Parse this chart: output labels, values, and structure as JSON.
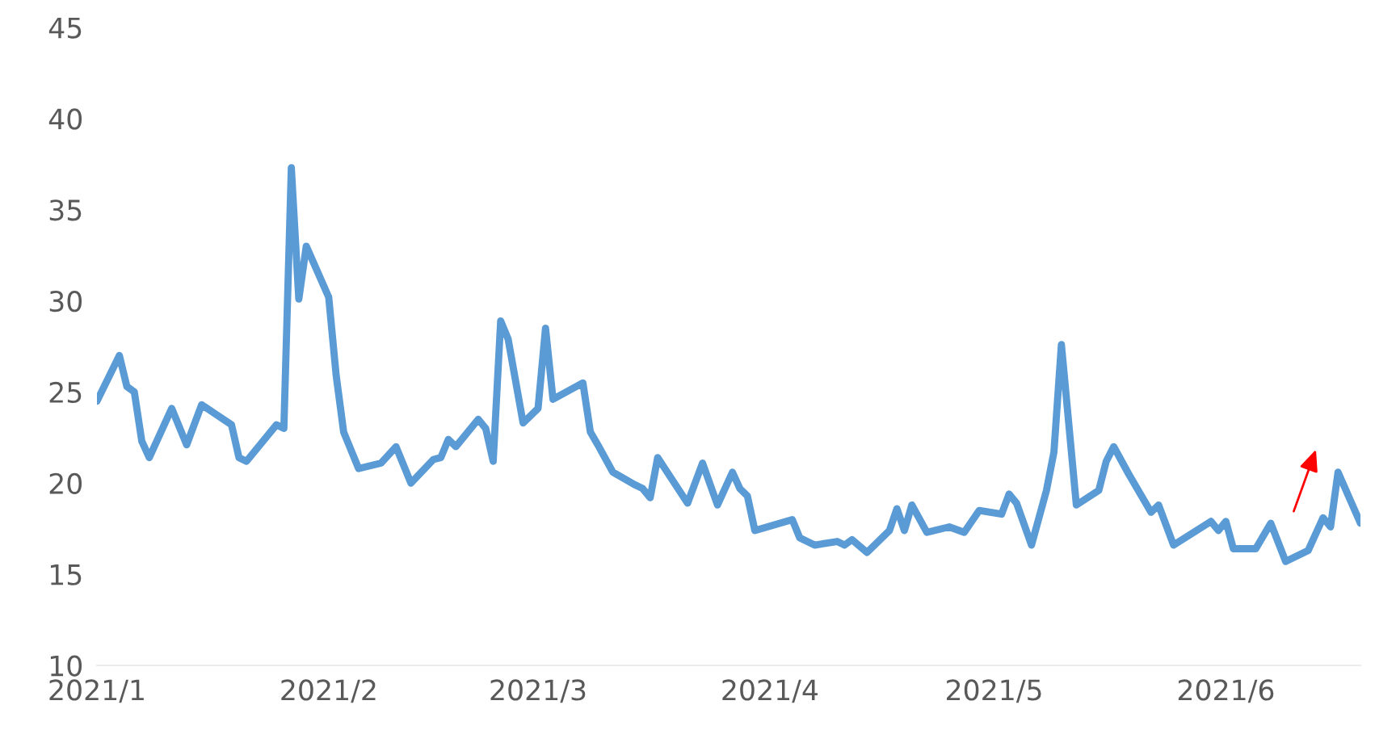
{
  "chart_data": {
    "type": "line",
    "x": [
      "2021-01-01",
      "2021-01-04",
      "2021-01-05",
      "2021-01-06",
      "2021-01-07",
      "2021-01-08",
      "2021-01-11",
      "2021-01-13",
      "2021-01-15",
      "2021-01-19",
      "2021-01-20",
      "2021-01-21",
      "2021-01-25",
      "2021-01-26",
      "2021-01-27",
      "2021-01-28",
      "2021-01-29",
      "2021-02-01",
      "2021-02-02",
      "2021-02-03",
      "2021-02-05",
      "2021-02-08",
      "2021-02-10",
      "2021-02-12",
      "2021-02-15",
      "2021-02-16",
      "2021-02-17",
      "2021-02-18",
      "2021-02-21",
      "2021-02-22",
      "2021-02-23",
      "2021-02-24",
      "2021-02-25",
      "2021-02-27",
      "2021-03-01",
      "2021-03-02",
      "2021-03-03",
      "2021-03-07",
      "2021-03-08",
      "2021-03-09",
      "2021-03-11",
      "2021-03-14",
      "2021-03-15",
      "2021-03-16",
      "2021-03-17",
      "2021-03-21",
      "2021-03-23",
      "2021-03-25",
      "2021-03-27",
      "2021-03-28",
      "2021-03-29",
      "2021-03-30",
      "2021-04-04",
      "2021-04-05",
      "2021-04-07",
      "2021-04-10",
      "2021-04-11",
      "2021-04-12",
      "2021-04-14",
      "2021-04-17",
      "2021-04-18",
      "2021-04-19",
      "2021-04-20",
      "2021-04-22",
      "2021-04-25",
      "2021-04-27",
      "2021-04-29",
      "2021-05-02",
      "2021-05-03",
      "2021-05-04",
      "2021-05-06",
      "2021-05-08",
      "2021-05-09",
      "2021-05-10",
      "2021-05-12",
      "2021-05-15",
      "2021-05-16",
      "2021-05-17",
      "2021-05-19",
      "2021-05-22",
      "2021-05-23",
      "2021-05-25",
      "2021-05-30",
      "2021-05-31",
      "2021-06-01",
      "2021-06-02",
      "2021-06-05",
      "2021-06-07",
      "2021-06-09",
      "2021-06-12",
      "2021-06-14",
      "2021-06-15",
      "2021-06-16",
      "2021-06-19"
    ],
    "series": [
      {
        "color": "#5b9bd5",
        "values": [
          24.5,
          27.0,
          25.3,
          25.0,
          22.3,
          21.4,
          24.1,
          22.1,
          24.3,
          23.2,
          21.4,
          21.2,
          23.2,
          23.0,
          37.3,
          30.1,
          33.0,
          30.2,
          25.9,
          22.8,
          20.8,
          21.1,
          22.0,
          20.0,
          21.3,
          21.4,
          22.4,
          22.0,
          23.5,
          23.0,
          21.2,
          28.9,
          27.9,
          23.3,
          24.1,
          28.5,
          24.6,
          25.5,
          22.8,
          22.1,
          20.6,
          19.9,
          19.7,
          19.2,
          21.4,
          18.9,
          21.1,
          18.8,
          20.6,
          19.7,
          19.3,
          17.4,
          18.0,
          17.0,
          16.6,
          16.8,
          16.6,
          16.9,
          16.2,
          17.4,
          18.6,
          17.4,
          18.8,
          17.3,
          17.6,
          17.3,
          18.5,
          18.3,
          19.4,
          18.9,
          16.6,
          19.6,
          21.7,
          27.6,
          18.8,
          19.6,
          21.2,
          22.0,
          20.5,
          18.4,
          18.8,
          16.6,
          17.9,
          17.4,
          17.9,
          16.4,
          16.4,
          17.8,
          15.7,
          16.3,
          18.1,
          17.6,
          20.6,
          17.8
        ]
      }
    ],
    "xticks": [
      {
        "value": "2021-01-01",
        "label": "2021/1"
      },
      {
        "value": "2021-02-01",
        "label": "2021/2"
      },
      {
        "value": "2021-03-01",
        "label": "2021/3"
      },
      {
        "value": "2021-04-01",
        "label": "2021/4"
      },
      {
        "value": "2021-05-01",
        "label": "2021/5"
      },
      {
        "value": "2021-06-01",
        "label": "2021/6"
      }
    ],
    "xlim": [
      "2021-01-01",
      "2021-06-19"
    ],
    "ylim": [
      10,
      45
    ],
    "yticks": [
      10,
      15,
      20,
      25,
      30,
      35,
      40,
      45
    ],
    "grid": false,
    "marker": "none",
    "line_style": "solid"
  }
}
